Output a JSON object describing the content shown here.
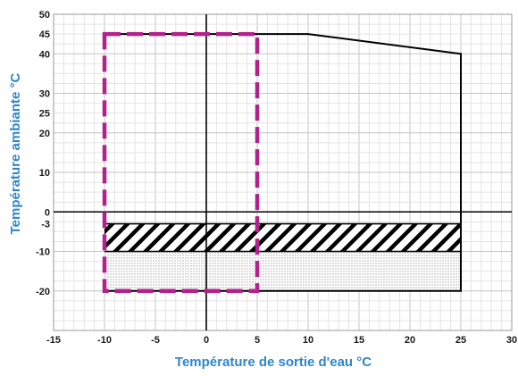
{
  "chart_data": {
    "type": "area",
    "title": "",
    "xlabel": "Température de sortie d'eau °C",
    "ylabel": "Température ambiante °C",
    "xlim": [
      -15,
      30
    ],
    "ylim": [
      -30,
      50
    ],
    "x_ticks": [
      -15,
      -10,
      -5,
      0,
      5,
      10,
      15,
      20,
      25,
      30
    ],
    "y_ticks": [
      -20,
      -10,
      -3,
      0,
      10,
      20,
      25,
      30,
      40,
      45,
      50
    ],
    "grid": true,
    "legend": "none",
    "series": [
      {
        "kind": "operating-envelope",
        "points": [
          [
            -10,
            45
          ],
          [
            10,
            45
          ],
          [
            25,
            40
          ],
          [
            25,
            -20
          ],
          [
            -10,
            -20
          ]
        ],
        "color": "#000000"
      },
      {
        "kind": "dashed-region",
        "points": [
          [
            -10,
            45
          ],
          [
            5,
            45
          ],
          [
            5,
            -20
          ],
          [
            -10,
            -20
          ]
        ],
        "color": "#b3218c"
      },
      {
        "kind": "diagonal-hatch",
        "x_range": [
          -10,
          25
        ],
        "y_range": [
          -10,
          -3
        ],
        "color": "#000000"
      },
      {
        "kind": "dotted-fill",
        "x_range": [
          -10,
          25
        ],
        "y_range": [
          -20,
          -10
        ],
        "color": "#555555"
      }
    ]
  }
}
